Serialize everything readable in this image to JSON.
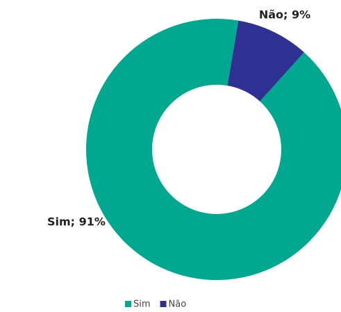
{
  "chart_data": {
    "type": "donut",
    "categories": [
      "Sim",
      "Não"
    ],
    "values": [
      91,
      9
    ],
    "value_labels": [
      "Sim; 91%",
      "Não; 9%"
    ],
    "colors": [
      "#00a88f",
      "#2e3192"
    ],
    "legend": "bottom"
  }
}
